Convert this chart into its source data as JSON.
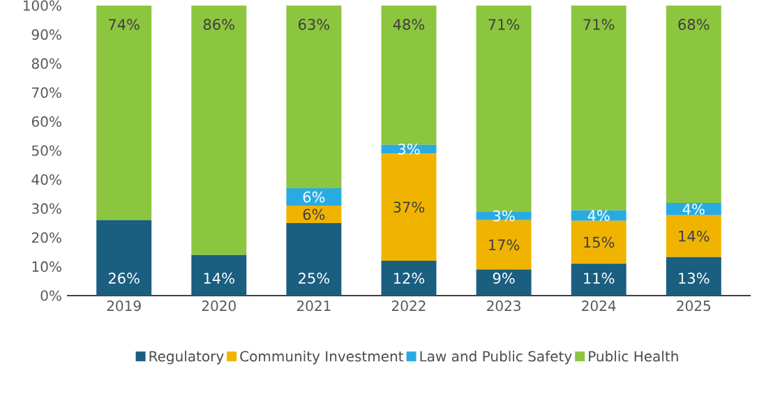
{
  "chart_data": {
    "type": "bar",
    "stacked": true,
    "categories": [
      "2019",
      "2020",
      "2021",
      "2022",
      "2023",
      "2024",
      "2025"
    ],
    "series": [
      {
        "name": "Regulatory",
        "color": "#1a5e80",
        "values": [
          26,
          14,
          25,
          12,
          9,
          11,
          13.3
        ],
        "value_labels": [
          "26%",
          "14%",
          "25%",
          "12%",
          "9%",
          "11%",
          "13%"
        ]
      },
      {
        "name": "Community Investment",
        "color": "#f0b400",
        "values": [
          0,
          0,
          6,
          37,
          17,
          14.8,
          14.4
        ],
        "value_labels": [
          null,
          null,
          "6%",
          "37%",
          "17%",
          "15%",
          "14%"
        ]
      },
      {
        "name": "Law and Public Safety",
        "color": "#29abe2",
        "values": [
          0,
          0,
          6,
          3,
          3,
          3.6,
          4.3
        ],
        "value_labels": [
          null,
          null,
          "6%",
          "3%",
          "3%",
          "4%",
          "4%"
        ]
      },
      {
        "name": "Public Health",
        "color": "#8cc63f",
        "values": [
          74,
          86,
          63,
          48,
          71,
          70.6,
          68
        ],
        "value_labels": [
          "74%",
          "86%",
          "63%",
          "48%",
          "71%",
          "71%",
          "68%"
        ]
      }
    ],
    "ylim": [
      0,
      100
    ],
    "yticks": [
      {
        "value": 0,
        "label": "0%"
      },
      {
        "value": 10,
        "label": "10%"
      },
      {
        "value": 20,
        "label": "20%"
      },
      {
        "value": 30,
        "label": "30%"
      },
      {
        "value": 40,
        "label": "40%"
      },
      {
        "value": 50,
        "label": "50%"
      },
      {
        "value": 60,
        "label": "60%"
      },
      {
        "value": 70,
        "label": "70%"
      },
      {
        "value": 80,
        "label": "80%"
      },
      {
        "value": 90,
        "label": "90%"
      },
      {
        "value": 100,
        "label": "100%"
      }
    ],
    "grid": false,
    "legend": "bottom"
  }
}
